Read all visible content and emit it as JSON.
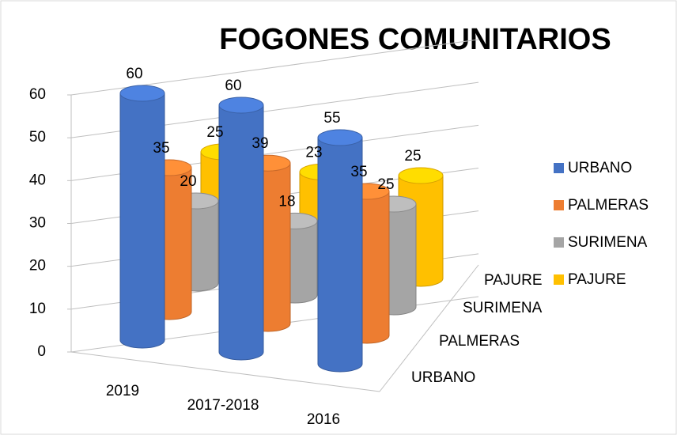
{
  "chart_data": {
    "type": "bar3d",
    "title": "FOGONES COMUNITARIOS",
    "categories": [
      "2019",
      "2017-2018",
      "2016"
    ],
    "series": [
      {
        "name": "URBANO",
        "color": "#4472c4",
        "values": [
          60,
          60,
          55
        ]
      },
      {
        "name": "PALMERAS",
        "color": "#ed7d31",
        "values": [
          35,
          39,
          35
        ]
      },
      {
        "name": "SURIMENA",
        "color": "#a5a5a5",
        "values": [
          20,
          18,
          25
        ]
      },
      {
        "name": "PAJURE",
        "color": "#ffc000",
        "values": [
          25,
          23,
          25
        ]
      }
    ],
    "ylim": [
      0,
      60
    ],
    "yticks": [
      0,
      10,
      20,
      30,
      40,
      50,
      60
    ],
    "grid": true,
    "legend": "right"
  }
}
